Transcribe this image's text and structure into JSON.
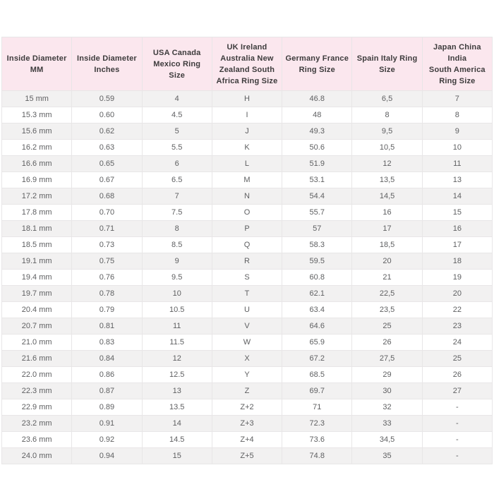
{
  "page": {
    "background": "#ffffff"
  },
  "table": {
    "name": "ring-size-conversion-table",
    "colors": {
      "header_bg": "#fbe7ee",
      "alt_row_bg": "#f2f1f1",
      "border": "#e8e6e7",
      "header_text": "#3d3b3c",
      "cell_text": "#5f6062"
    },
    "columns": [
      {
        "label": "Inside Diameter MM",
        "lines": [
          "Inside Diameter",
          "MM"
        ]
      },
      {
        "label": "Inside Diameter Inches",
        "lines": [
          "Inside Diameter",
          "Inches"
        ]
      },
      {
        "label": "USA Canada Mexico Ring Size",
        "lines": [
          "USA Canada",
          "Mexico Ring Size"
        ]
      },
      {
        "label": "UK Ireland Australia New Zealand South Africa Ring Size",
        "lines": [
          "UK Ireland",
          "Australia New",
          "Zealand South",
          "Africa Ring Size"
        ]
      },
      {
        "label": "Germany France Ring Size",
        "lines": [
          "Germany France",
          "Ring Size"
        ]
      },
      {
        "label": "Spain Italy Ring Size",
        "lines": [
          "Spain Italy Ring",
          "Size"
        ]
      },
      {
        "label": "Japan China India South America Ring Size",
        "lines": [
          "Japan China India",
          "South America",
          "Ring Size"
        ]
      }
    ],
    "rows": [
      [
        "15 mm",
        "0.59",
        "4",
        "H",
        "46.8",
        "6,5",
        "7"
      ],
      [
        "15.3 mm",
        "0.60",
        "4.5",
        "I",
        "48",
        "8",
        "8"
      ],
      [
        "15.6 mm",
        "0.62",
        "5",
        "J",
        "49.3",
        "9,5",
        "9"
      ],
      [
        "16.2 mm",
        "0.63",
        "5.5",
        "K",
        "50.6",
        "10,5",
        "10"
      ],
      [
        "16.6 mm",
        "0.65",
        "6",
        "L",
        "51.9",
        "12",
        "11"
      ],
      [
        "16.9 mm",
        "0.67",
        "6.5",
        "M",
        "53.1",
        "13,5",
        "13"
      ],
      [
        "17.2 mm",
        "0.68",
        "7",
        "N",
        "54.4",
        "14,5",
        "14"
      ],
      [
        "17.8 mm",
        "0.70",
        "7.5",
        "O",
        "55.7",
        "16",
        "15"
      ],
      [
        "18.1 mm",
        "0.71",
        "8",
        "P",
        "57",
        "17",
        "16"
      ],
      [
        "18.5 mm",
        "0.73",
        "8.5",
        "Q",
        "58.3",
        "18,5",
        "17"
      ],
      [
        "19.1 mm",
        "0.75",
        "9",
        "R",
        "59.5",
        "20",
        "18"
      ],
      [
        "19.4 mm",
        "0.76",
        "9.5",
        "S",
        "60.8",
        "21",
        "19"
      ],
      [
        "19.7 mm",
        "0.78",
        "10",
        "T",
        "62.1",
        "22,5",
        "20"
      ],
      [
        "20.4 mm",
        "0.79",
        "10.5",
        "U",
        "63.4",
        "23,5",
        "22"
      ],
      [
        "20.7 mm",
        "0.81",
        "11",
        "V",
        "64.6",
        "25",
        "23"
      ],
      [
        "21.0 mm",
        "0.83",
        "11.5",
        "W",
        "65.9",
        "26",
        "24"
      ],
      [
        "21.6 mm",
        "0.84",
        "12",
        "X",
        "67.2",
        "27,5",
        "25"
      ],
      [
        "22.0 mm",
        "0.86",
        "12.5",
        "Y",
        "68.5",
        "29",
        "26"
      ],
      [
        "22.3 mm",
        "0.87",
        "13",
        "Z",
        "69.7",
        "30",
        "27"
      ],
      [
        "22.9 mm",
        "0.89",
        "13.5",
        "Z+2",
        "71",
        "32",
        "-"
      ],
      [
        "23.2 mm",
        "0.91",
        "14",
        "Z+3",
        "72.3",
        "33",
        "-"
      ],
      [
        "23.6 mm",
        "0.92",
        "14.5",
        "Z+4",
        "73.6",
        "34,5",
        "-"
      ],
      [
        "24.0 mm",
        "0.94",
        "15",
        "Z+5",
        "74.8",
        "35",
        "-"
      ]
    ]
  }
}
